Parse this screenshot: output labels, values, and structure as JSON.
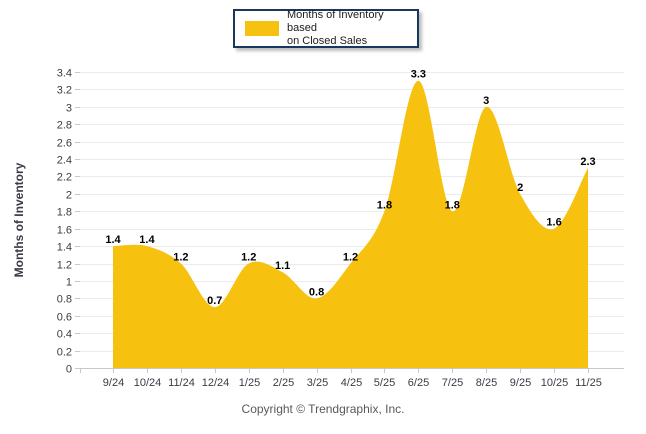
{
  "legend": {
    "lines": [
      "Months of Inventory based",
      "on Closed Sales"
    ]
  },
  "footer": "Copyright © Trendgraphix, Inc.",
  "colors": {
    "area": "#F6C20F",
    "grid": "#ebebeb",
    "axis": "#c8c8c8",
    "tick_label": "#3b3b47",
    "data_label": "#000000",
    "legend_border": "#17375e",
    "footer_text": "#595959"
  },
  "chart_data": {
    "type": "area",
    "title": "",
    "xlabel": "",
    "ylabel": "Months of Inventory",
    "series_name": "Months of Inventory based on Closed Sales",
    "categories": [
      "9/24",
      "10/24",
      "11/24",
      "12/24",
      "1/25",
      "2/25",
      "3/25",
      "4/25",
      "5/25",
      "6/25",
      "7/25",
      "8/25",
      "9/25",
      "10/25",
      "11/25"
    ],
    "values": [
      1.4,
      1.4,
      1.2,
      0.7,
      1.2,
      1.1,
      0.8,
      1.2,
      1.8,
      3.3,
      1.8,
      3,
      2,
      1.6,
      2.3
    ],
    "point_labels": [
      "1.4",
      "1.4",
      "1.2",
      "0.7",
      "1.2",
      "1.1",
      "0.8",
      "1.2",
      "1.8",
      "3.3",
      "1.8",
      "3",
      "2",
      "1.6",
      "2.3"
    ],
    "ylim": [
      0,
      3.4
    ],
    "ytick_step": 0.2,
    "grid": "horizontal",
    "legend_position": "top-center",
    "smooth": true
  }
}
